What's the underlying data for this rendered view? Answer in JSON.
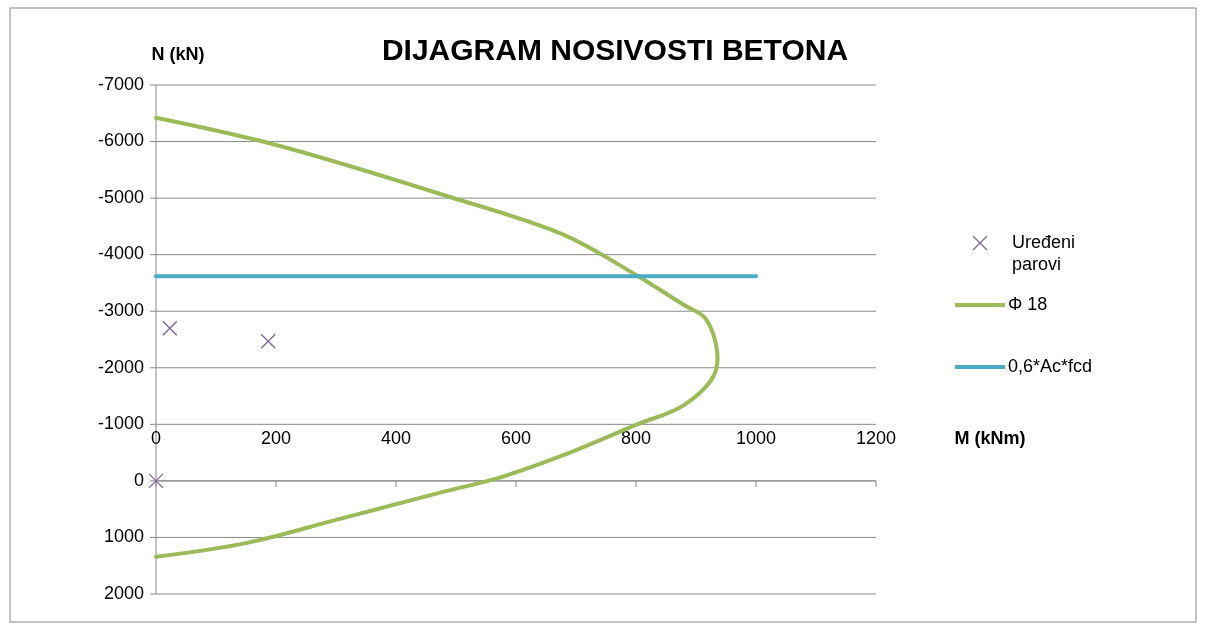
{
  "chart_data": {
    "type": "line",
    "title": "DIJAGRAM NOSIVOSTI BETONA",
    "xlabel": "M (kNm)",
    "ylabel": "N (kN)",
    "xlim": [
      0,
      1200
    ],
    "xticks": [
      0,
      200,
      400,
      600,
      800,
      1000,
      1200
    ],
    "ylim": [
      2000,
      -7000
    ],
    "yticks": [
      -7000,
      -6000,
      -5000,
      -4000,
      -3000,
      -2000,
      -1000,
      0,
      1000,
      2000
    ],
    "grid": "y",
    "legend": "right",
    "series": [
      {
        "name": "Uređeni parovi",
        "type": "scatter",
        "marker": "cross",
        "color": "#8064a2",
        "x": [
          23,
          187,
          0
        ],
        "values": [
          -2700,
          -2470,
          0
        ]
      },
      {
        "name": "Φ 18",
        "type": "line",
        "color": "#9bbb59",
        "x": [
          0,
          200,
          490,
          680,
          800,
          880,
          915,
          935,
          930,
          880,
          800,
          680,
          570,
          480,
          300,
          150,
          0
        ],
        "values": [
          -6420,
          -5940,
          -5020,
          -4350,
          -3640,
          -3110,
          -2880,
          -2310,
          -1870,
          -1340,
          -990,
          -460,
          -50,
          190,
          690,
          1100,
          1340
        ]
      },
      {
        "name": "0,6*Ac*fcd",
        "type": "line",
        "color": "#4bacc6",
        "x": [
          0,
          1000
        ],
        "values": [
          -3620,
          -3620
        ]
      }
    ]
  }
}
